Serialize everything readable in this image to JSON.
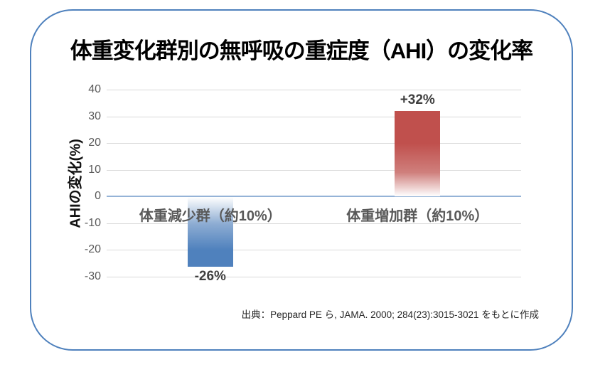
{
  "title": "体重変化群別の無呼吸の重症度（AHI）の変化率",
  "source_note": "出典：Peppard PE ら, JAMA. 2000; 284(23):3015-3021 をもとに作成",
  "colors": {
    "frame_border": "#4f81bd",
    "gridline": "#d9d9d9",
    "zero_line": "#95b3d7",
    "tick_text": "#595959",
    "category_text": "#595959",
    "value_text": "#3f3f3f",
    "title_text": "#000000"
  },
  "chart_data": {
    "type": "bar",
    "title": "体重変化群別の無呼吸の重症度（AHI）の変化率",
    "ylabel": "AHIの変化(%)",
    "xlabel": "",
    "categories": [
      "体重減少群（約10%）",
      "体重増加群（約10%）"
    ],
    "values": [
      -26,
      32
    ],
    "value_labels": [
      "-26%",
      "+32%"
    ],
    "bar_colors": [
      "#4f81bd",
      "#c0504d"
    ],
    "bar_colors_mid": [
      "#8eadd3",
      "#cf7f7c"
    ],
    "gradient_note": "bars fade to white toward the zero baseline",
    "yticks": [
      40,
      30,
      20,
      10,
      0,
      -10,
      -20,
      -30
    ],
    "ylim": [
      -30,
      40
    ],
    "grid": true,
    "legend": false,
    "source": "出典：Peppard PE ら, JAMA. 2000; 284(23):3015-3021 をもとに作成"
  }
}
